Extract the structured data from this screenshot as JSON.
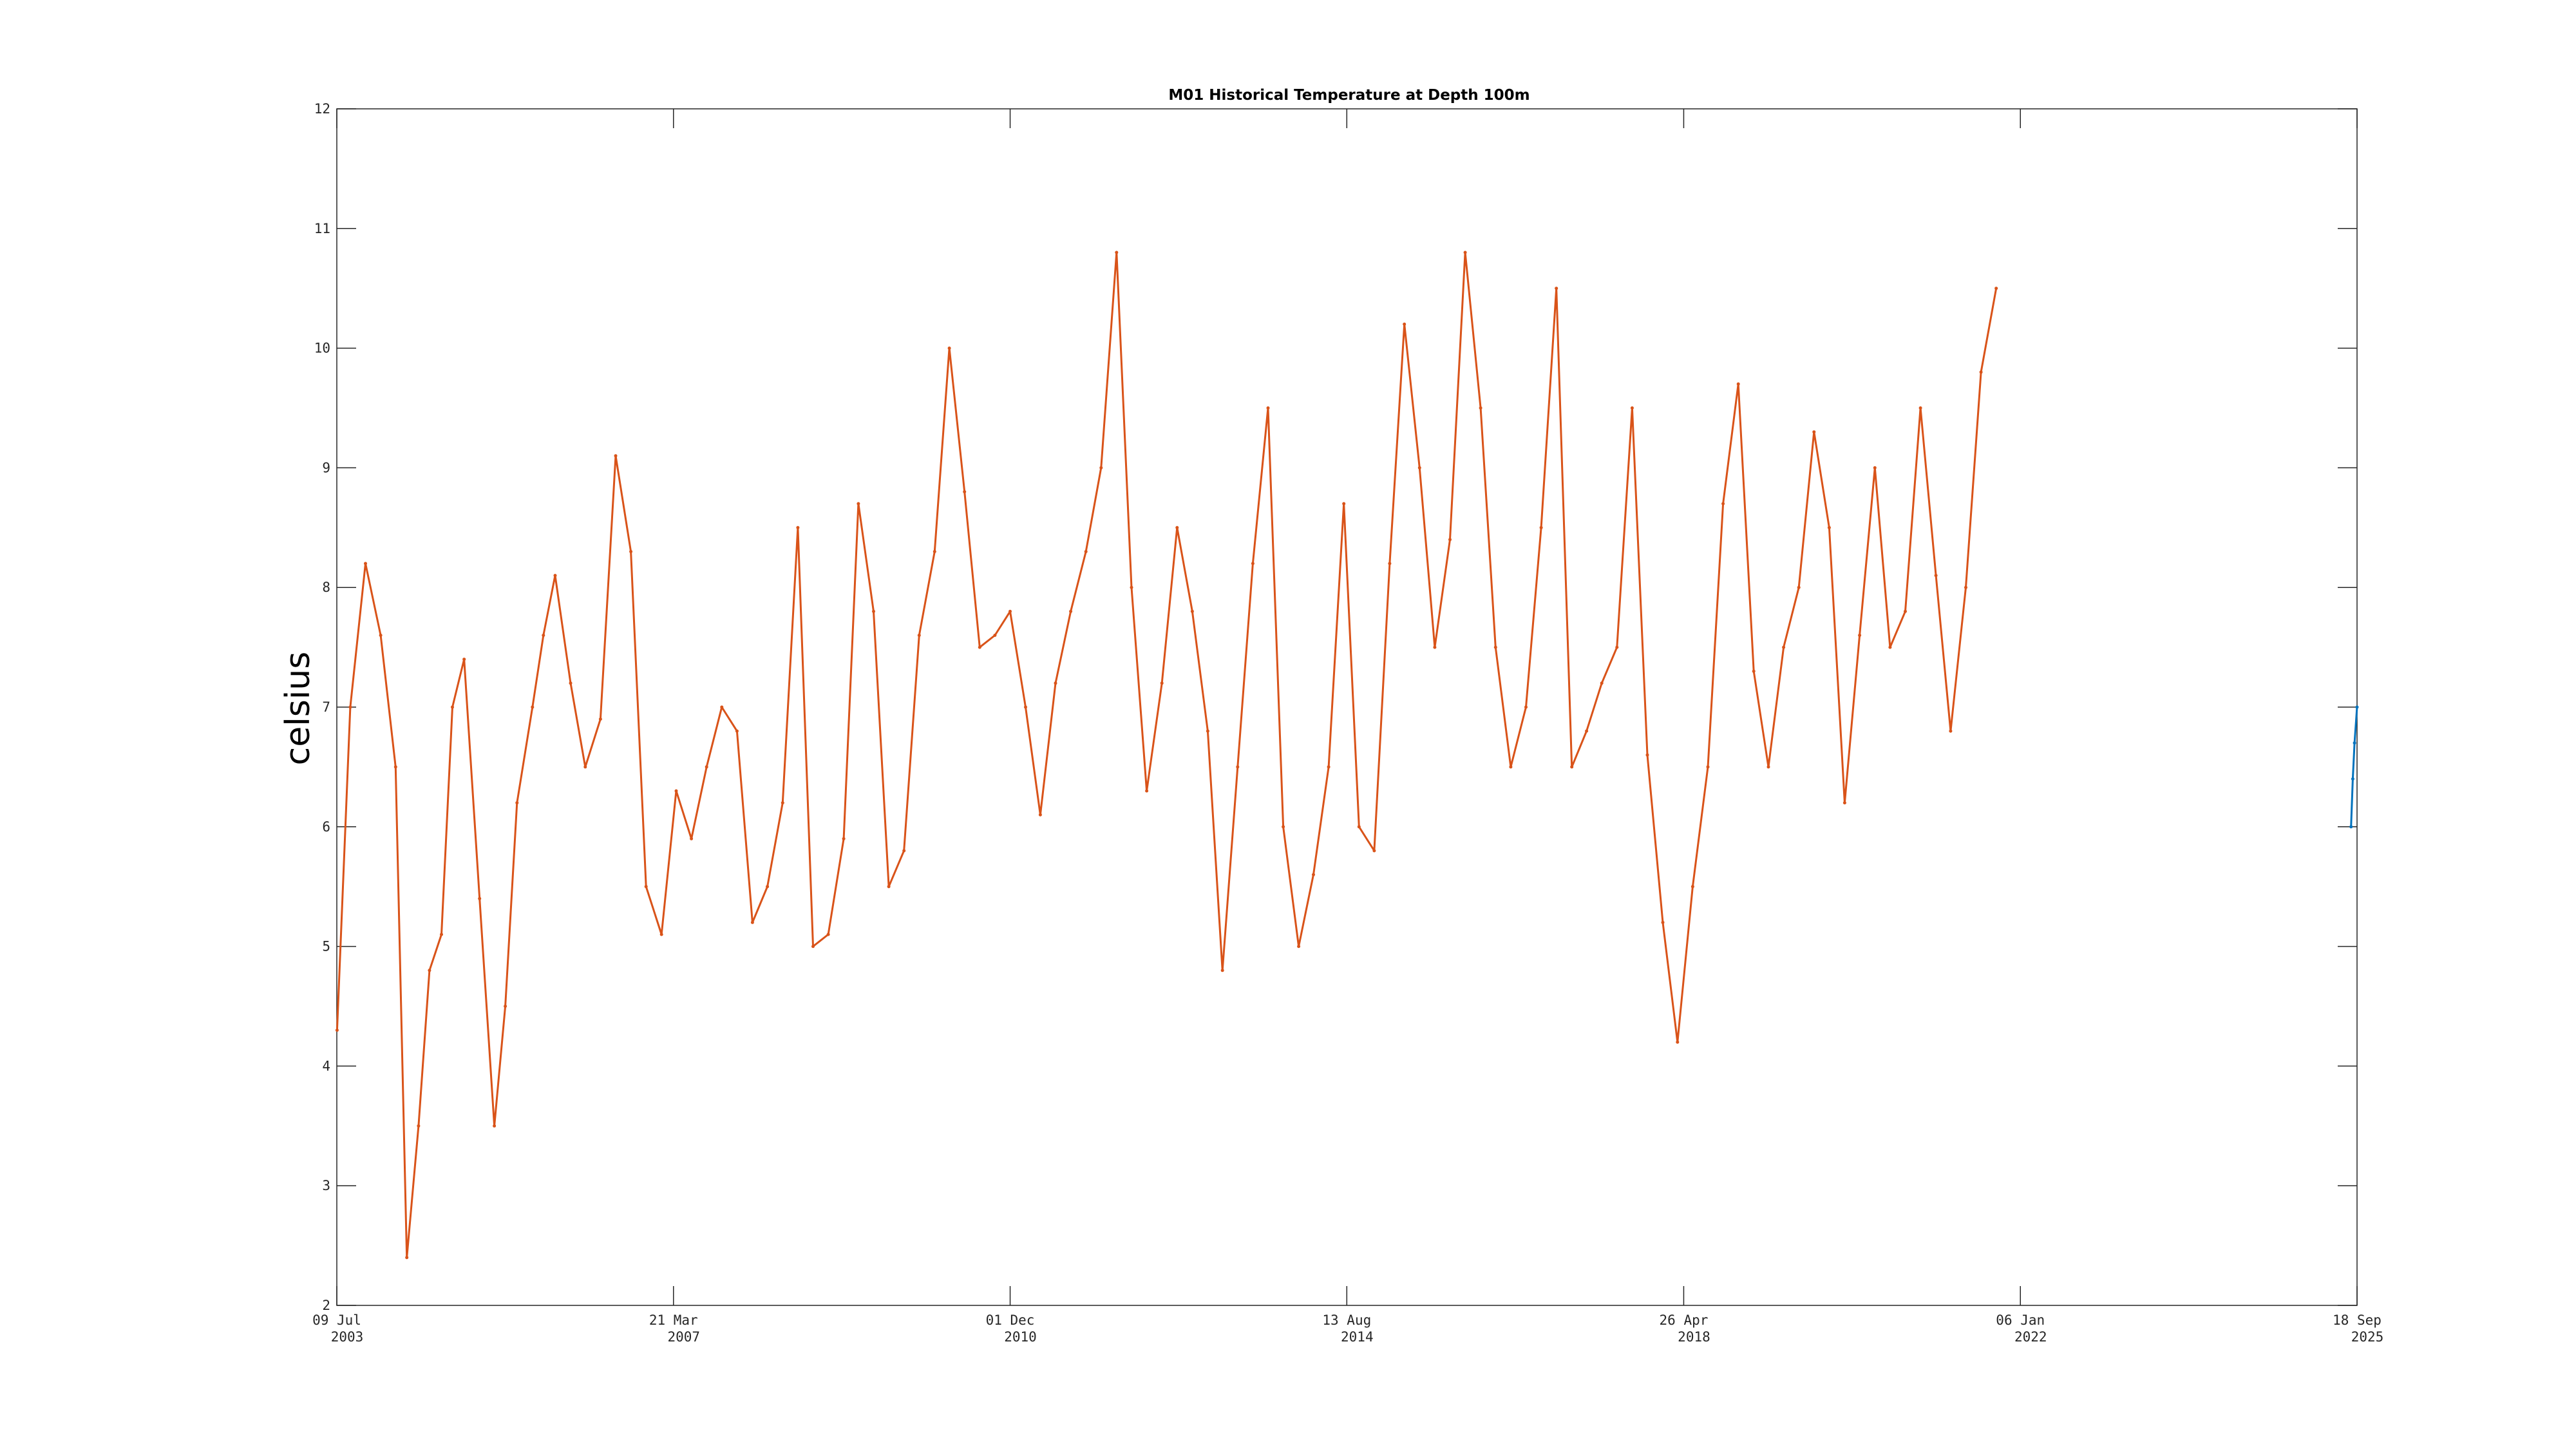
{
  "chart_data": {
    "type": "line",
    "title": "M01 Historical Temperature at Depth 100m",
    "xlabel": "",
    "ylabel": "celsius",
    "xlim": [
      "2003-07-09",
      "2025-09-18"
    ],
    "ylim": [
      2,
      12
    ],
    "yticks": [
      2,
      3,
      4,
      5,
      6,
      7,
      8,
      9,
      10,
      11,
      12
    ],
    "xticks": [
      {
        "date": "2003-07-09",
        "line1": "09 Jul",
        "line2": "2003"
      },
      {
        "date": "2007-03-21",
        "line1": "21 Mar",
        "line2": "2007"
      },
      {
        "date": "2010-12-01",
        "line1": "01 Dec",
        "line2": "2010"
      },
      {
        "date": "2014-08-13",
        "line1": "13 Aug",
        "line2": "2014"
      },
      {
        "date": "2018-04-26",
        "line1": "26 Apr",
        "line2": "2018"
      },
      {
        "date": "2022-01-06",
        "line1": "06 Jan",
        "line2": "2022"
      },
      {
        "date": "2025-09-18",
        "line1": "18 Sep",
        "line2": "2025"
      }
    ],
    "grid": false,
    "series": [
      {
        "color": "#d95319",
        "x": [
          "2003-07-10",
          "2003-09-01",
          "2003-11-01",
          "2004-01-01",
          "2004-03-01",
          "2004-04-15",
          "2004-06-01",
          "2004-07-15",
          "2004-09-01",
          "2004-10-15",
          "2004-12-01",
          "2005-02-01",
          "2005-04-01",
          "2005-05-15",
          "2005-07-01",
          "2005-09-01",
          "2005-10-15",
          "2005-12-01",
          "2006-02-01",
          "2006-04-01",
          "2006-06-01",
          "2006-08-01",
          "2006-10-01",
          "2006-12-01",
          "2007-02-01",
          "2007-04-01",
          "2007-06-01",
          "2007-08-01",
          "2007-10-01",
          "2007-12-01",
          "2008-02-01",
          "2008-04-01",
          "2008-06-01",
          "2008-08-01",
          "2008-10-01",
          "2008-12-01",
          "2009-02-01",
          "2009-04-01",
          "2009-06-01",
          "2009-08-01",
          "2009-10-01",
          "2009-12-01",
          "2010-02-01",
          "2010-04-01",
          "2010-06-01",
          "2010-08-01",
          "2010-10-01",
          "2010-12-01",
          "2011-02-01",
          "2011-04-01",
          "2011-06-01",
          "2011-08-01",
          "2011-10-01",
          "2011-12-01",
          "2012-02-01",
          "2012-04-01",
          "2012-06-01",
          "2012-08-01",
          "2012-10-01",
          "2012-12-01",
          "2013-02-01",
          "2013-04-01",
          "2013-06-01",
          "2013-08-01",
          "2013-10-01",
          "2013-12-01",
          "2014-02-01",
          "2014-04-01",
          "2014-06-01",
          "2014-08-01",
          "2014-10-01",
          "2014-12-01",
          "2015-02-01",
          "2015-04-01",
          "2015-06-01",
          "2015-08-01",
          "2015-10-01",
          "2015-12-01",
          "2016-02-01",
          "2016-04-01",
          "2016-06-01",
          "2016-08-01",
          "2016-10-01",
          "2016-12-01",
          "2017-02-01",
          "2017-04-01",
          "2017-06-01",
          "2017-08-01",
          "2017-10-01",
          "2017-12-01",
          "2018-02-01",
          "2018-04-01",
          "2018-06-01",
          "2018-08-01",
          "2018-10-01",
          "2018-12-01",
          "2019-02-01",
          "2019-04-01",
          "2019-06-01",
          "2019-08-01",
          "2019-10-01",
          "2019-12-01",
          "2020-02-01",
          "2020-04-01",
          "2020-06-01",
          "2020-08-01",
          "2020-10-01",
          "2020-12-01",
          "2021-02-01",
          "2021-04-01",
          "2021-06-01",
          "2021-08-01",
          "2021-10-01"
        ],
        "y": [
          4.3,
          7.0,
          8.2,
          7.6,
          6.5,
          2.4,
          3.5,
          4.8,
          5.1,
          7.0,
          7.4,
          5.4,
          3.5,
          4.5,
          6.2,
          7.0,
          7.6,
          8.1,
          7.2,
          6.5,
          6.9,
          9.1,
          8.3,
          5.5,
          5.1,
          6.3,
          5.9,
          6.5,
          7.0,
          6.8,
          5.2,
          5.5,
          6.2,
          8.5,
          5.0,
          5.1,
          5.9,
          8.7,
          7.8,
          5.5,
          5.8,
          7.6,
          8.3,
          10.0,
          8.8,
          7.5,
          7.6,
          7.8,
          7.0,
          6.1,
          7.2,
          7.8,
          8.3,
          9.0,
          10.8,
          8.0,
          6.3,
          7.2,
          8.5,
          7.8,
          6.8,
          4.8,
          6.5,
          8.2,
          9.5,
          6.0,
          5.0,
          5.6,
          6.5,
          8.7,
          6.0,
          5.8,
          8.2,
          10.2,
          9.0,
          7.5,
          8.4,
          10.8,
          9.5,
          7.5,
          6.5,
          7.0,
          8.5,
          10.5,
          6.5,
          6.8,
          7.2,
          7.5,
          9.5,
          6.6,
          5.2,
          4.2,
          5.5,
          6.5,
          8.7,
          9.7,
          7.3,
          6.5,
          7.5,
          8.0,
          9.3,
          8.5,
          6.2,
          7.6,
          9.0,
          7.5,
          7.8,
          9.5,
          8.1,
          6.8,
          8.0,
          9.8,
          10.5
        ]
      },
      {
        "color": "#0072bd",
        "x": [
          "2025-08-25",
          "2025-09-01",
          "2025-09-08",
          "2025-09-18"
        ],
        "y": [
          6.0,
          6.4,
          6.7,
          7.0
        ]
      }
    ]
  }
}
